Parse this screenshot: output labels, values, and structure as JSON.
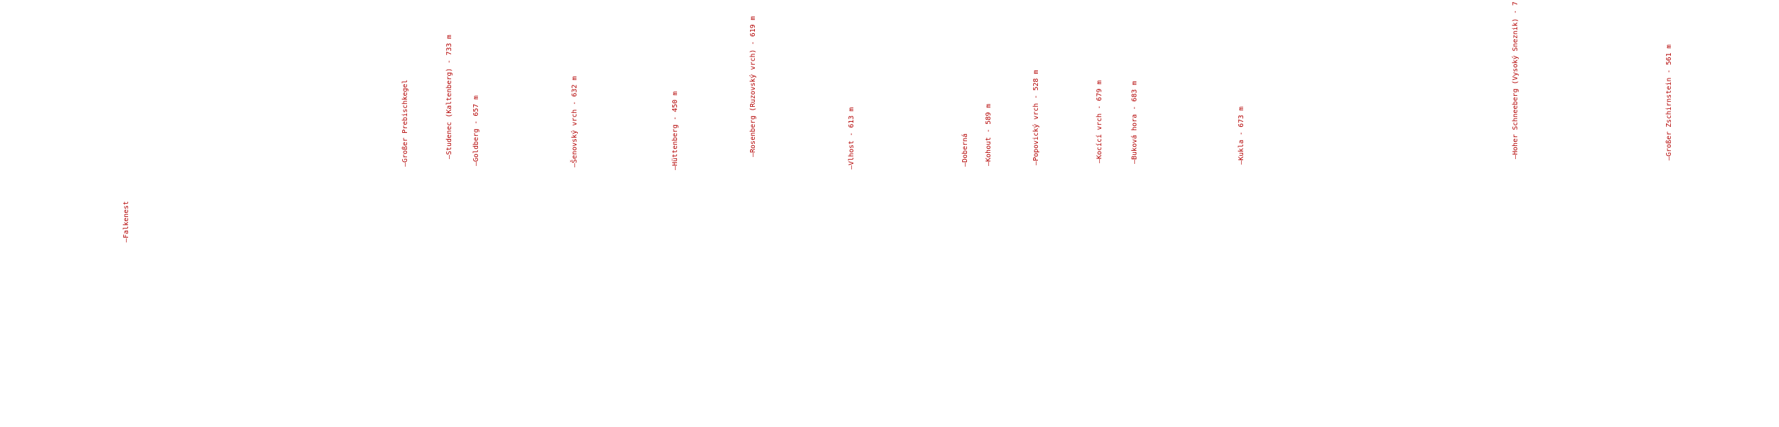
{
  "colors": {
    "label": "#b30000",
    "background": "#ffffff"
  },
  "peaks": [
    {
      "label": "Falkenest"
    },
    {
      "label": "Großer Prebischkegel"
    },
    {
      "label": "Studenec (Kaltenberg) - 733 m"
    },
    {
      "label": "Goldberg - 657 m"
    },
    {
      "label": "Šenovský vrch - 632 m"
    },
    {
      "label": "Hüttenberg - 450 m"
    },
    {
      "label": "Rosenberg (Ruzovský vrch) - 619 m"
    },
    {
      "label": "Vlhost - 613 m"
    },
    {
      "label": "Doberná"
    },
    {
      "label": "Kohout - 589 m"
    },
    {
      "label": "Popovický vrch - 528 m"
    },
    {
      "label": "Kocící vrch - 679 m"
    },
    {
      "label": "Buková hora - 683 m"
    },
    {
      "label": "Kukla - 673 m"
    },
    {
      "label": "Hoher Schneeberg (Vysoký Sneznik) - 7"
    },
    {
      "label": "Großer Zschirnstein - 561 m"
    }
  ]
}
